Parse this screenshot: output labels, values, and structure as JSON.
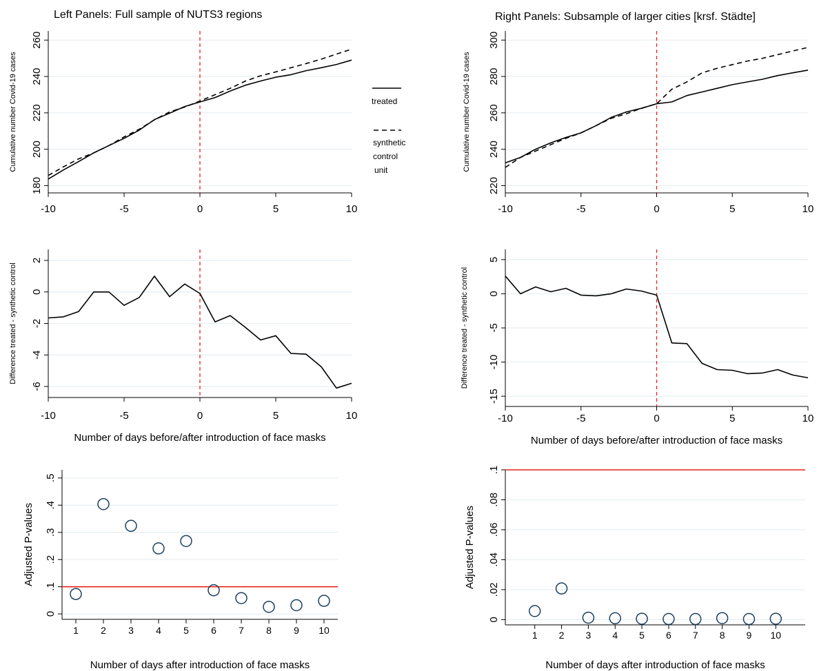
{
  "figure": {
    "left_heading": "Left Panels: Full sample of NUTS3 regions",
    "right_heading": "Right Panels: Subsample of larger cities [krsf. Städte]"
  },
  "legend": {
    "treated": "treated",
    "synthetic_line1": "synthetic",
    "synthetic_line2": "control",
    "synthetic_line3": "unit"
  },
  "chart_data": [
    {
      "id": "left-top",
      "type": "line",
      "ylabel": "Cumulative number Covid-19 cases",
      "xlabel": "",
      "x": [
        -10,
        -9,
        -8,
        -7,
        -6,
        -5,
        -4,
        -3,
        -2,
        -1,
        0,
        1,
        2,
        3,
        4,
        5,
        6,
        7,
        8,
        9,
        10
      ],
      "xlim": [
        -10,
        10
      ],
      "xticks": [
        -10,
        -5,
        0,
        5,
        10
      ],
      "ylim": [
        176,
        265
      ],
      "yticks": [
        180,
        200,
        220,
        240,
        260
      ],
      "vline": 0,
      "series": [
        {
          "name": "treated",
          "style": "solid",
          "values": [
            183.6,
            188.6,
            193.2,
            198.0,
            202.0,
            206.0,
            210.5,
            216.3,
            219.8,
            223.5,
            226.0,
            228.4,
            232.0,
            235.2,
            237.5,
            239.6,
            241.0,
            243.2,
            244.8,
            246.6,
            249.0
          ]
        },
        {
          "name": "synthetic control unit",
          "style": "dashed",
          "values": [
            185.6,
            190.3,
            194.7,
            198.0,
            202.0,
            206.8,
            211.0,
            216.2,
            220.5,
            223.2,
            226.5,
            230.0,
            233.5,
            237.5,
            240.4,
            242.5,
            244.8,
            247.1,
            249.5,
            252.3,
            255.0
          ]
        }
      ]
    },
    {
      "id": "right-top",
      "type": "line",
      "ylabel": "Cumulative number Covid-19 cases",
      "xlabel": "",
      "x": [
        -10,
        -9,
        -8,
        -7,
        -6,
        -5,
        -4,
        -3,
        -2,
        -1,
        0,
        1,
        2,
        3,
        4,
        5,
        6,
        7,
        8,
        9,
        10
      ],
      "xlim": [
        -10,
        10
      ],
      "xticks": [
        -10,
        -5,
        0,
        5,
        10
      ],
      "ylim": [
        216,
        305
      ],
      "yticks": [
        220,
        240,
        260,
        280,
        300
      ],
      "vline": 0,
      "series": [
        {
          "name": "treated",
          "style": "solid",
          "values": [
            232.5,
            235.5,
            240.0,
            243.5,
            246.5,
            249.0,
            253.0,
            257.5,
            260.5,
            262.5,
            265.0,
            266.0,
            269.5,
            271.5,
            273.5,
            275.5,
            277.0,
            278.5,
            280.5,
            282.0,
            283.5
          ]
        },
        {
          "name": "synthetic control unit",
          "style": "dashed",
          "values": [
            230.0,
            235.5,
            239.0,
            242.5,
            246.0,
            249.0,
            253.0,
            257.0,
            259.5,
            262.5,
            265.0,
            273.0,
            277.0,
            282.0,
            284.5,
            286.5,
            288.5,
            290.0,
            292.0,
            294.0,
            296.0
          ]
        }
      ]
    },
    {
      "id": "left-mid",
      "type": "line",
      "ylabel": "Difference treated - synthetic control",
      "xlabel": "Number of days before/after introduction of face masks",
      "x": [
        -10,
        -9,
        -8,
        -7,
        -6,
        -5,
        -4,
        -3,
        -2,
        -1,
        0,
        1,
        2,
        3,
        4,
        5,
        6,
        7,
        8,
        9,
        10
      ],
      "xlim": [
        -10,
        10
      ],
      "xticks": [
        -10,
        -5,
        0,
        5,
        10
      ],
      "ylim": [
        -6.7,
        2.7
      ],
      "yticks": [
        -6,
        -4,
        -2,
        0,
        2
      ],
      "vline": 0,
      "series": [
        {
          "name": "difference",
          "style": "solid",
          "values": [
            -1.65,
            -1.58,
            -1.25,
            0.0,
            0.0,
            -0.85,
            -0.35,
            1.0,
            -0.3,
            0.5,
            -0.1,
            -1.9,
            -1.5,
            -2.25,
            -3.05,
            -2.78,
            -3.9,
            -3.95,
            -4.75,
            -6.1,
            -5.8
          ]
        }
      ]
    },
    {
      "id": "right-mid",
      "type": "line",
      "ylabel": "Difference treated - synthetic control",
      "xlabel": "Number of days before/after introduction of face masks",
      "x": [
        -10,
        -9,
        -8,
        -7,
        -6,
        -5,
        -4,
        -3,
        -2,
        -1,
        0,
        1,
        2,
        3,
        4,
        5,
        6,
        7,
        8,
        9,
        10
      ],
      "xlim": [
        -10,
        10
      ],
      "xticks": [
        -10,
        -5,
        0,
        5,
        10
      ],
      "ylim": [
        -16.5,
        6.5
      ],
      "yticks": [
        -15,
        -10,
        -5,
        0,
        5
      ],
      "vline": 0,
      "series": [
        {
          "name": "difference",
          "style": "solid",
          "values": [
            2.6,
            0.0,
            1.0,
            0.3,
            0.8,
            -0.2,
            -0.3,
            0.0,
            0.7,
            0.4,
            -0.2,
            -7.2,
            -7.3,
            -10.2,
            -11.1,
            -11.2,
            -11.7,
            -11.6,
            -11.1,
            -11.9,
            -12.3
          ]
        }
      ]
    },
    {
      "id": "left-bottom",
      "type": "scatter",
      "ylabel": "Adjusted P-values",
      "xlabel": "Number of days after introduction of face masks",
      "x": [
        1,
        2,
        3,
        4,
        5,
        6,
        7,
        8,
        9,
        10
      ],
      "xlim": [
        0.5,
        10.5
      ],
      "xticks": [
        1,
        2,
        3,
        4,
        5,
        6,
        7,
        8,
        9,
        10
      ],
      "ylim": [
        -0.02,
        0.53
      ],
      "yticks": [
        0,
        0.1,
        0.2,
        0.3,
        0.4,
        0.5
      ],
      "ytick_labels": [
        "0",
        ".1",
        ".2",
        ".3",
        ".4",
        ".5"
      ],
      "hline": 0.1,
      "series": [
        {
          "name": "p-values",
          "values": [
            0.073,
            0.404,
            0.324,
            0.241,
            0.268,
            0.087,
            0.058,
            0.026,
            0.032,
            0.048
          ]
        }
      ]
    },
    {
      "id": "right-bottom",
      "type": "scatter",
      "ylabel": "Adjusted P-values",
      "xlabel": "Number of days after introduction of face masks",
      "x": [
        1,
        2,
        3,
        4,
        5,
        6,
        7,
        8,
        9,
        10
      ],
      "xlim": [
        -0.1,
        11.1
      ],
      "xticks": [
        1,
        2,
        3,
        4,
        5,
        6,
        7,
        8,
        9,
        10
      ],
      "ylim": [
        -0.0035,
        0.1
      ],
      "yticks": [
        0,
        0.02,
        0.04,
        0.06,
        0.08,
        0.1
      ],
      "ytick_labels": [
        "0",
        ".02",
        ".04",
        ".06",
        ".08",
        ".1"
      ],
      "hline": 0.1,
      "series": [
        {
          "name": "p-values",
          "values": [
            0.0057,
            0.0208,
            0.0013,
            0.0009,
            0.0006,
            0.0004,
            0.0004,
            0.001,
            0.0004,
            0.0006
          ]
        }
      ]
    }
  ],
  "colors": {
    "line": "#000000",
    "vline": "#e8211d",
    "hline": "#e8211d",
    "grid": "#e6eef2",
    "marker": "#1b3f5f"
  }
}
